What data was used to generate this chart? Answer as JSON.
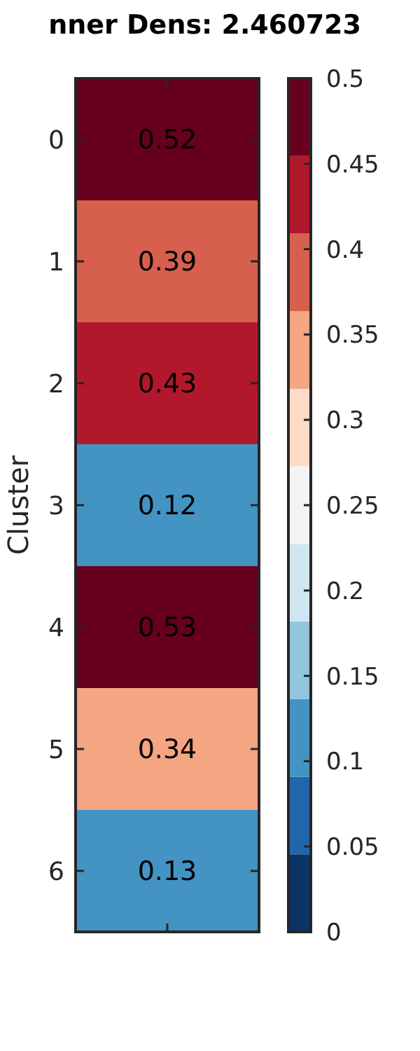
{
  "chart_data": {
    "type": "heatmap",
    "title": "nner Dens: 2.460723",
    "ylabel": "Cluster",
    "categories": [
      null
    ],
    "y_categories": [
      "0",
      "1",
      "2",
      "3",
      "4",
      "5",
      "6"
    ],
    "cells": [
      [
        0.52
      ],
      [
        0.39
      ],
      [
        0.43
      ],
      [
        0.12
      ],
      [
        0.53
      ],
      [
        0.34
      ],
      [
        0.13
      ]
    ],
    "data_labels": true,
    "clim": [
      0,
      0.5
    ],
    "cticks": [
      0,
      0.05,
      0.1,
      0.15,
      0.2,
      0.25,
      0.3,
      0.35,
      0.4,
      0.45,
      0.5
    ]
  }
}
